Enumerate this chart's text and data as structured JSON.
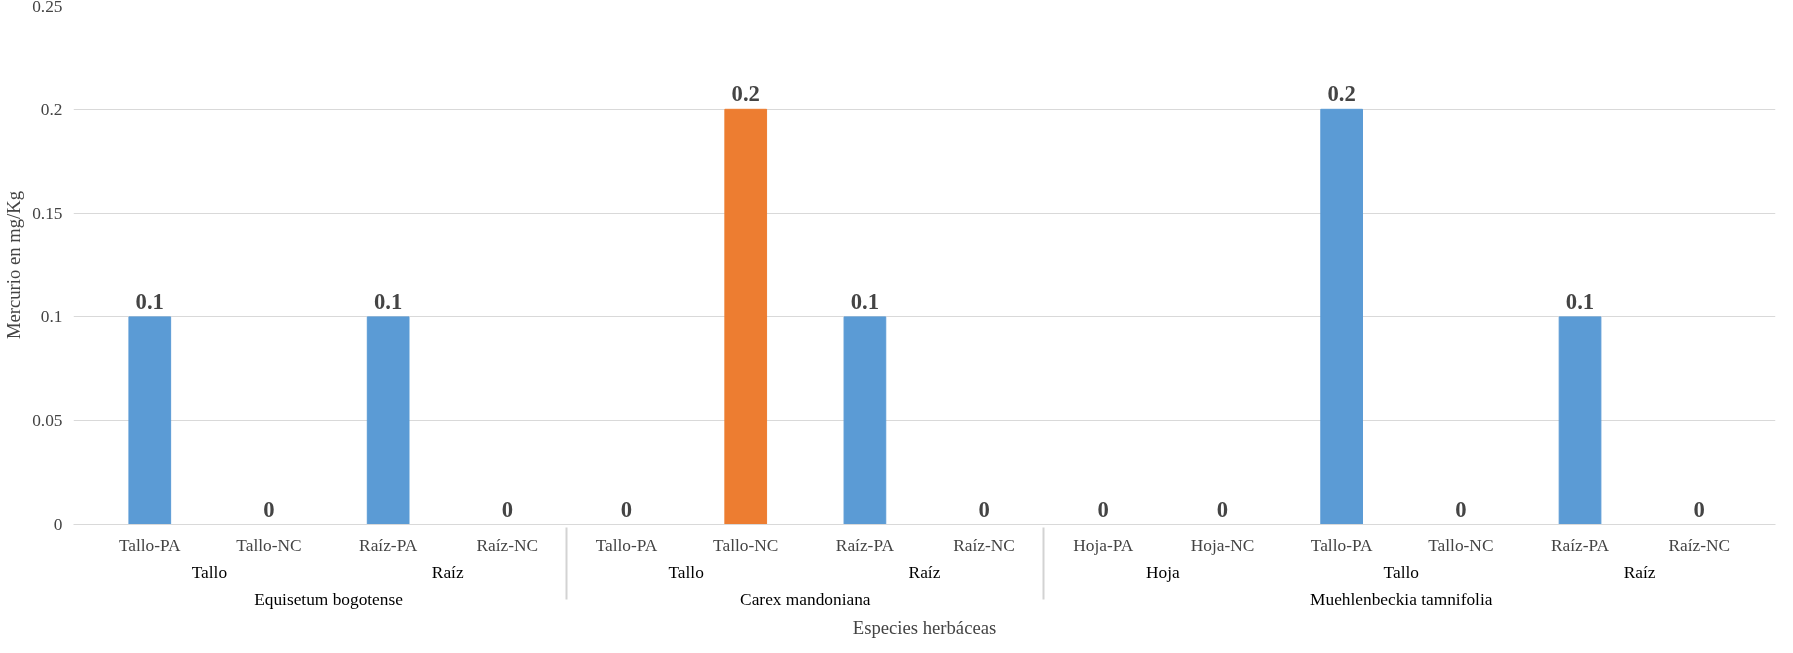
{
  "chart_data": {
    "type": "bar",
    "xlabel": "Especies herbáceas",
    "ylabel": "Mercurio en mg/Kg",
    "categories": [
      [
        "Equisetum bogotense",
        "Tallo",
        "Tallo-PA"
      ],
      [
        null,
        null,
        "Tallo-NC"
      ],
      [
        null,
        "Raíz",
        "Raíz-PA"
      ],
      [
        null,
        null,
        "Raíz-NC"
      ],
      [
        "Carex mandoniana",
        "Tallo",
        "Tallo-PA"
      ],
      [
        null,
        null,
        "Tallo-NC"
      ],
      [
        null,
        "Raíz",
        "Raíz-PA"
      ],
      [
        null,
        null,
        "Raíz-NC"
      ],
      [
        "Muehlenbeckia tamnifolia",
        "Hoja",
        "Hoja-PA"
      ],
      [
        null,
        null,
        "Hoja-NC"
      ],
      [
        null,
        "Tallo",
        "Tallo-PA"
      ],
      [
        null,
        null,
        "Tallo-NC"
      ],
      [
        null,
        "Raíz",
        "Raíz-PA"
      ],
      [
        null,
        null,
        "Raíz-NC"
      ]
    ],
    "values": [
      0.1,
      0,
      0.1,
      0,
      0,
      0.2,
      0.1,
      0,
      0,
      0,
      0.2,
      0,
      0.1,
      0
    ],
    "colors": [
      "#5b9bd5",
      "#5b9bd5",
      "#5b9bd5",
      "#5b9bd5",
      "#5b9bd5",
      "#ed7d31",
      "#5b9bd5",
      "#5b9bd5",
      "#5b9bd5",
      "#5b9bd5",
      "#5b9bd5",
      "#5b9bd5",
      "#5b9bd5",
      "#5b9bd5"
    ],
    "ylim": [
      0,
      0.25
    ],
    "yticks": [
      0,
      0.05,
      0.1,
      0.15,
      0.2,
      0.25
    ],
    "grid": "y",
    "data_labels": true
  }
}
